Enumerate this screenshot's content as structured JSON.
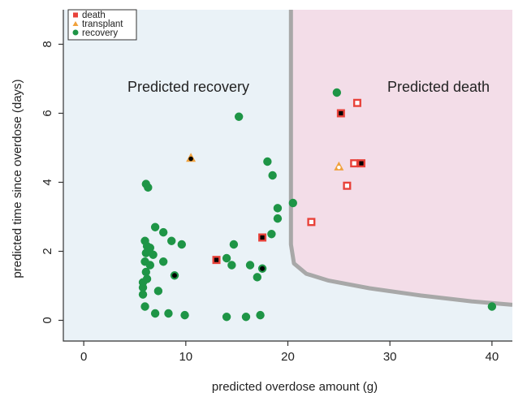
{
  "chart_data": {
    "type": "scatter",
    "xlabel": "predicted overdose amount (g)",
    "ylabel": "predicted time since overdose (days)",
    "xlim": [
      -2,
      42
    ],
    "ylim": [
      -0.6,
      9
    ],
    "x_ticks": [
      0,
      10,
      20,
      30,
      40
    ],
    "y_ticks": [
      0,
      2,
      4,
      6,
      8
    ],
    "region_labels": {
      "recovery": "Predicted recovery",
      "death": "Predicted death"
    },
    "region_colors": {
      "recovery": "#eaf2f7",
      "death": "#f3dde8",
      "boundary": "#a8a8a8"
    },
    "decision_boundary": [
      [
        20.3,
        9
      ],
      [
        20.3,
        2.2
      ],
      [
        20.6,
        1.65
      ],
      [
        21.8,
        1.35
      ],
      [
        24,
        1.15
      ],
      [
        28,
        0.93
      ],
      [
        33,
        0.72
      ],
      [
        38,
        0.55
      ],
      [
        42,
        0.45
      ]
    ],
    "legend_position": "top-left",
    "series": [
      {
        "name": "death",
        "marker": "square",
        "color": "#e8423a",
        "points": [
          [
            26.8,
            6.3
          ],
          [
            25.2,
            6.0
          ],
          [
            26.5,
            4.55
          ],
          [
            27.2,
            4.55
          ],
          [
            25.8,
            3.9
          ],
          [
            22.3,
            2.85
          ],
          [
            17.5,
            2.4
          ],
          [
            13.0,
            1.75
          ]
        ],
        "black_center": [
          [
            25.2,
            6.0
          ],
          [
            27.2,
            4.55
          ],
          [
            17.5,
            2.4
          ],
          [
            13.0,
            1.75
          ]
        ]
      },
      {
        "name": "transplant",
        "marker": "triangle",
        "color": "#f0a13c",
        "points": [
          [
            10.5,
            4.7
          ],
          [
            25.0,
            4.45
          ]
        ],
        "black_center": [
          [
            10.5,
            4.7
          ]
        ]
      },
      {
        "name": "recovery",
        "marker": "circle",
        "color": "#1e9546",
        "points": [
          [
            15.2,
            5.9
          ],
          [
            24.8,
            6.6
          ],
          [
            6.1,
            3.95
          ],
          [
            6.3,
            3.85
          ],
          [
            18.0,
            4.6
          ],
          [
            18.5,
            4.2
          ],
          [
            20.5,
            3.4
          ],
          [
            19.0,
            3.25
          ],
          [
            19.0,
            2.95
          ],
          [
            18.4,
            2.5
          ],
          [
            7.0,
            2.7
          ],
          [
            7.8,
            2.55
          ],
          [
            8.6,
            2.3
          ],
          [
            9.6,
            2.2
          ],
          [
            6.0,
            2.3
          ],
          [
            6.2,
            2.15
          ],
          [
            6.5,
            2.1
          ],
          [
            6.1,
            1.95
          ],
          [
            6.8,
            1.9
          ],
          [
            6.0,
            1.7
          ],
          [
            6.5,
            1.6
          ],
          [
            7.8,
            1.7
          ],
          [
            14.0,
            1.8
          ],
          [
            14.7,
            2.2
          ],
          [
            14.5,
            1.6
          ],
          [
            16.3,
            1.6
          ],
          [
            17.5,
            1.5
          ],
          [
            17.0,
            1.25
          ],
          [
            6.1,
            1.4
          ],
          [
            8.9,
            1.3
          ],
          [
            5.8,
            1.1
          ],
          [
            6.2,
            1.2
          ],
          [
            5.8,
            0.95
          ],
          [
            7.3,
            0.85
          ],
          [
            5.8,
            0.75
          ],
          [
            6.0,
            0.4
          ],
          [
            7.0,
            0.2
          ],
          [
            8.3,
            0.2
          ],
          [
            9.9,
            0.15
          ],
          [
            14.0,
            0.1
          ],
          [
            15.9,
            0.1
          ],
          [
            17.3,
            0.15
          ],
          [
            40.0,
            0.4
          ]
        ],
        "black_center": [
          [
            17.5,
            1.5
          ],
          [
            8.9,
            1.3
          ]
        ]
      }
    ]
  }
}
